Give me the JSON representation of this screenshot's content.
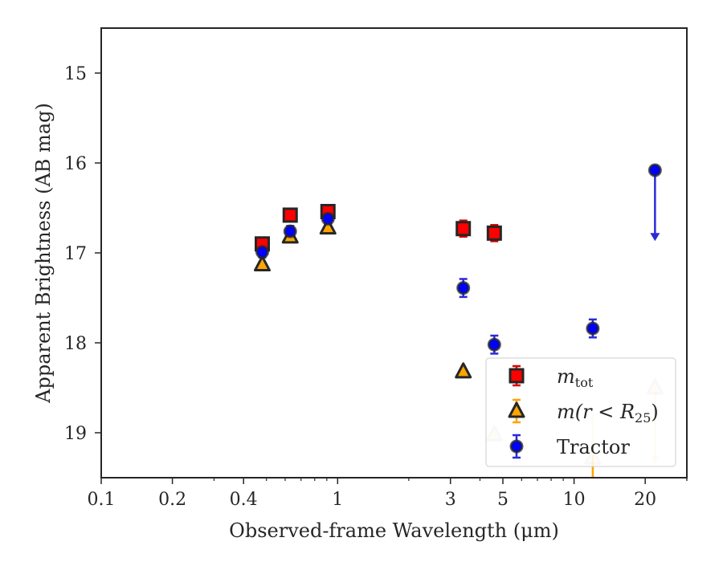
{
  "chart_data": {
    "type": "scatter",
    "xlabel": "Observed-frame Wavelength (μm)",
    "ylabel": "Apparent Brightness (AB mag)",
    "xscale": "log",
    "xlim": [
      0.1,
      30
    ],
    "ylim": [
      19.5,
      14.5
    ],
    "y_inverted": true,
    "x_ticks": [
      0.1,
      0.2,
      0.4,
      1,
      3,
      5,
      10,
      20
    ],
    "x_tick_labels": [
      "0.1",
      "0.2",
      "0.4",
      "1",
      "3",
      "5",
      "10",
      "20"
    ],
    "y_ticks": [
      15,
      16,
      17,
      18,
      19
    ],
    "y_tick_labels": [
      "15",
      "16",
      "17",
      "18",
      "19"
    ],
    "legend_position": "lower-right",
    "series": [
      {
        "name": "m_tot",
        "marker": "square",
        "color": "#ff0000",
        "edgecolor": "#262626",
        "points": [
          {
            "x": 0.48,
            "y": 16.9,
            "err": 0.06
          },
          {
            "x": 0.63,
            "y": 16.58,
            "err": 0.07
          },
          {
            "x": 0.91,
            "y": 16.54,
            "err": 0.07
          },
          {
            "x": 3.4,
            "y": 16.73,
            "err": 0.09
          },
          {
            "x": 4.6,
            "y": 16.78,
            "err": 0.09
          }
        ]
      },
      {
        "name": "m(r<R25)",
        "marker": "triangle",
        "color": "#ffa500",
        "edgecolor": "#262626",
        "points": [
          {
            "x": 0.48,
            "y": 17.13
          },
          {
            "x": 0.63,
            "y": 16.82
          },
          {
            "x": 0.91,
            "y": 16.72
          },
          {
            "x": 3.4,
            "y": 18.32
          },
          {
            "x": 4.6,
            "y": 19.02,
            "faded": true
          },
          {
            "x": 12,
            "y": 19.28,
            "faded": true,
            "upper_limit": true
          },
          {
            "x": 22,
            "y": 18.5,
            "faded": true,
            "upper_limit": true
          }
        ]
      },
      {
        "name": "Tractor",
        "marker": "circle",
        "color": "#0000ff",
        "edgecolor": "#262626",
        "points": [
          {
            "x": 0.48,
            "y": 16.99,
            "err": 0.06
          },
          {
            "x": 0.63,
            "y": 16.76,
            "err": 0.06
          },
          {
            "x": 0.91,
            "y": 16.62,
            "err": 0.06
          },
          {
            "x": 3.4,
            "y": 17.39,
            "err": 0.1
          },
          {
            "x": 4.6,
            "y": 18.02,
            "err": 0.1
          },
          {
            "x": 12,
            "y": 17.84,
            "err": 0.1
          },
          {
            "x": 22,
            "y": 16.08,
            "upper_limit": true,
            "limit_to": 16.85
          }
        ]
      }
    ]
  },
  "legend": {
    "entries": [
      {
        "key": "mtot",
        "main": "m",
        "sub": "tot"
      },
      {
        "key": "mr",
        "main": "m(r < R",
        "sub": "25",
        "tail": ")"
      },
      {
        "key": "tractor",
        "main": "Tractor",
        "sub": "",
        "tail": ""
      }
    ]
  }
}
